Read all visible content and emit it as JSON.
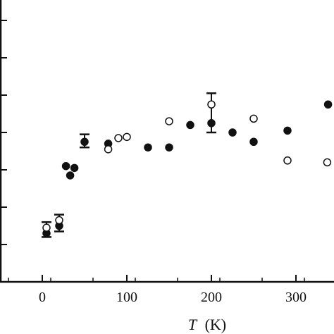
{
  "chart_data": {
    "type": "scatter",
    "title": "",
    "xlabel_italic": "T",
    "xlabel_unit": "(K)",
    "ylabel": "",
    "xlim": [
      -45,
      345
    ],
    "ylim": [
      0,
      7.5
    ],
    "grid": false,
    "x_ticks": [
      0,
      100,
      200,
      300
    ],
    "x_tick_labels": [
      "0",
      "100",
      "200",
      "300"
    ],
    "y_ticks": [
      1,
      2,
      3,
      4,
      5,
      6,
      7
    ],
    "series": [
      {
        "marker": "filled-circle",
        "points": [
          {
            "x": 5,
            "y": 1.3
          },
          {
            "x": 20,
            "y": 1.5
          },
          {
            "x": 28,
            "y": 3.1
          },
          {
            "x": 33,
            "y": 2.85
          },
          {
            "x": 38,
            "y": 3.05
          },
          {
            "x": 50,
            "y": 3.75
          },
          {
            "x": 78,
            "y": 3.7
          },
          {
            "x": 125,
            "y": 3.6
          },
          {
            "x": 150,
            "y": 3.6
          },
          {
            "x": 175,
            "y": 4.2
          },
          {
            "x": 200,
            "y": 4.25
          },
          {
            "x": 225,
            "y": 4.0
          },
          {
            "x": 250,
            "y": 3.75
          },
          {
            "x": 290,
            "y": 4.05
          },
          {
            "x": 338,
            "y": 4.75
          }
        ]
      },
      {
        "marker": "open-circle",
        "points": [
          {
            "x": 5,
            "y": 1.45
          },
          {
            "x": 20,
            "y": 1.65
          },
          {
            "x": 78,
            "y": 3.55
          },
          {
            "x": 90,
            "y": 3.85
          },
          {
            "x": 100,
            "y": 3.88
          },
          {
            "x": 150,
            "y": 4.3
          },
          {
            "x": 200,
            "y": 4.75
          },
          {
            "x": 250,
            "y": 4.37
          },
          {
            "x": 290,
            "y": 3.25
          },
          {
            "x": 337,
            "y": 3.2
          }
        ]
      }
    ],
    "error_bars": [
      {
        "x": 5,
        "low": 1.2,
        "high": 1.6
      },
      {
        "x": 20,
        "low": 1.35,
        "high": 1.8
      },
      {
        "x": 50,
        "low": 3.6,
        "high": 3.95
      },
      {
        "x": 200,
        "low": 4.0,
        "high": 5.05
      }
    ]
  }
}
